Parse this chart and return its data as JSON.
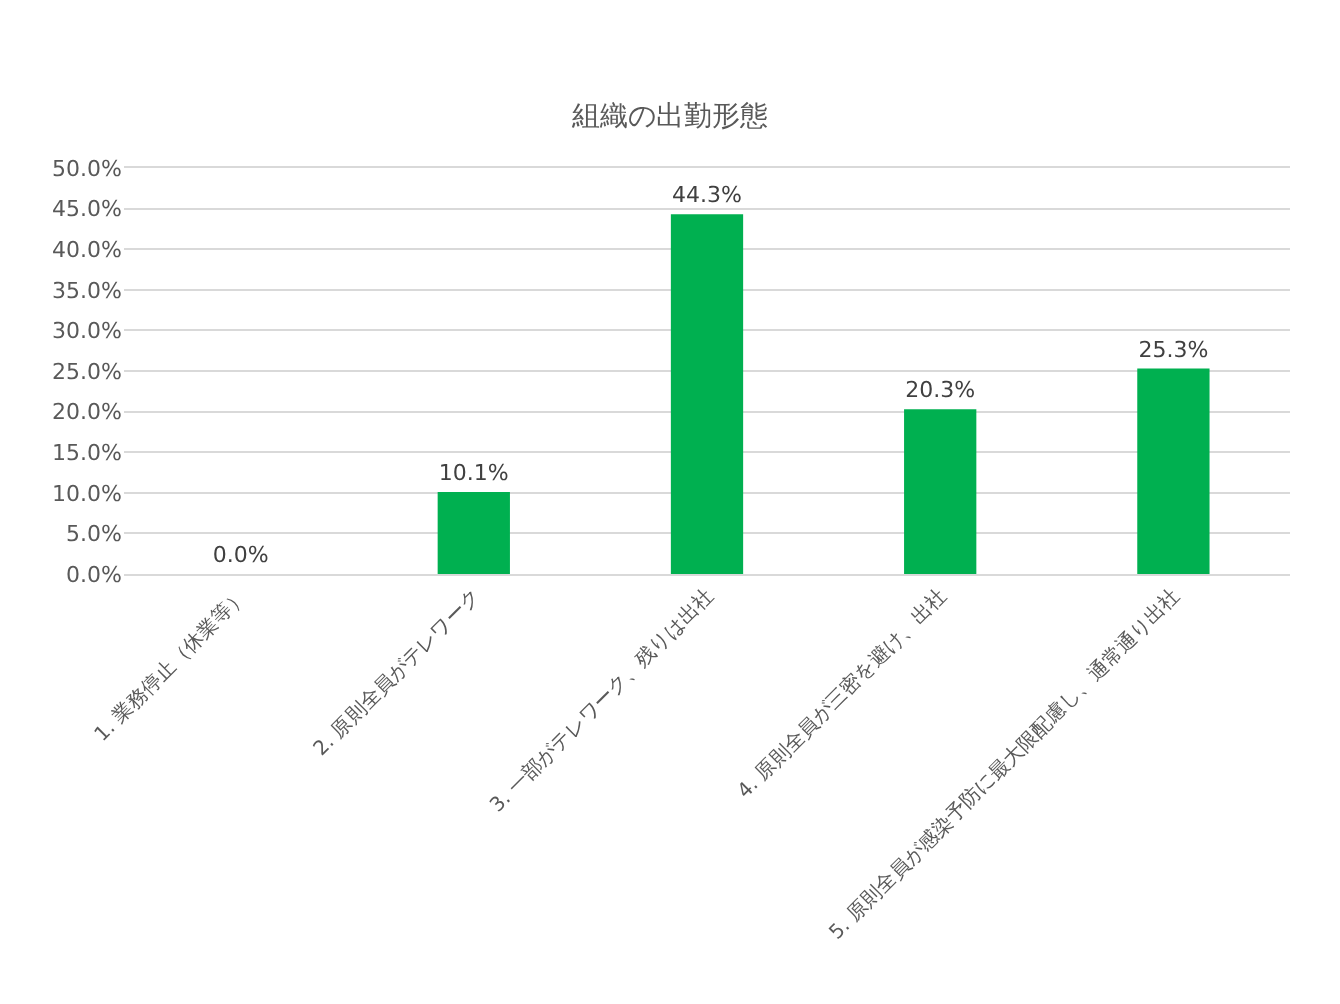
{
  "chart_data": {
    "type": "bar",
    "title": "組織の出勤形態",
    "categories": [
      "1. 業務停止（休業等）",
      "2. 原則全員がテレワーク",
      "3. 一部がテレワーク、残りは出社",
      "4. 原則全員が三密を避け、出社",
      "5. 原則全員が感染予防に最大限配慮し、通常通り出社"
    ],
    "values": [
      0.0,
      10.1,
      44.3,
      20.3,
      25.3
    ],
    "value_labels": [
      "0.0%",
      "10.1%",
      "44.3%",
      "20.3%",
      "25.3%"
    ],
    "color": "#00b050",
    "ylim": [
      0,
      50
    ],
    "yticks": [
      {
        "value": 0,
        "label": "0.0%"
      },
      {
        "value": 5,
        "label": "5.0%"
      },
      {
        "value": 10,
        "label": "10.0%"
      },
      {
        "value": 15,
        "label": "15.0%"
      },
      {
        "value": 20,
        "label": "20.0%"
      },
      {
        "value": 25,
        "label": "25.0%"
      },
      {
        "value": 30,
        "label": "30.0%"
      },
      {
        "value": 35,
        "label": "35.0%"
      },
      {
        "value": 40,
        "label": "40.0%"
      },
      {
        "value": 45,
        "label": "45.0%"
      },
      {
        "value": 50,
        "label": "50.0%"
      }
    ],
    "grid": "y"
  }
}
